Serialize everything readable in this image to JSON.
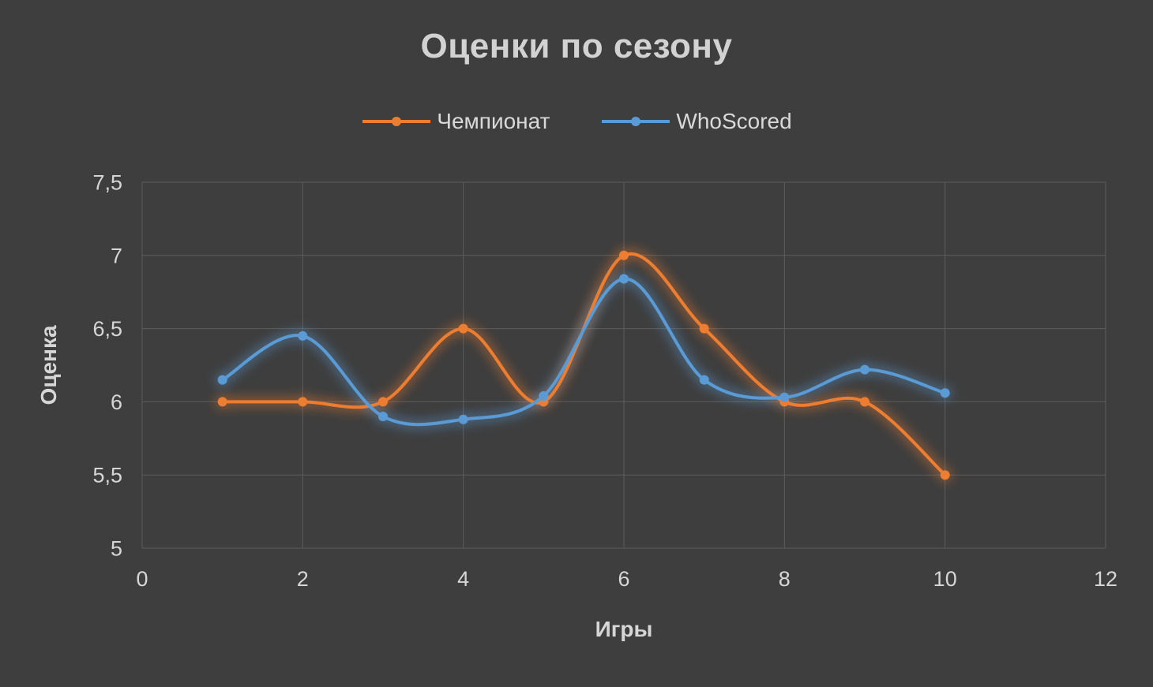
{
  "title": "Оценки по сезону",
  "colors": {
    "background": "#3e3e3e",
    "grid": "#5c5c5c",
    "tick_text": "#d6d6d6",
    "title_text": "#d2d2d2"
  },
  "chart_data": {
    "type": "line",
    "title": "Оценки по сезону",
    "xlabel": "Игры",
    "ylabel": "Оценка",
    "x": [
      1,
      2,
      3,
      4,
      5,
      6,
      7,
      8,
      9,
      10
    ],
    "series": [
      {
        "name": "Чемпионат",
        "color": "#ED7D31",
        "values": [
          6.0,
          6.0,
          6.0,
          6.5,
          6.0,
          7.0,
          6.5,
          6.0,
          6.0,
          5.5
        ]
      },
      {
        "name": "WhoScored",
        "color": "#5B9BD5",
        "values": [
          6.15,
          6.45,
          5.9,
          5.88,
          6.04,
          6.84,
          6.15,
          6.03,
          6.22,
          6.06
        ]
      }
    ],
    "xlim": [
      0,
      12
    ],
    "ylim": [
      5,
      7.5
    ],
    "x_ticks": [
      0,
      2,
      4,
      6,
      8,
      10,
      12
    ],
    "x_tick_labels": [
      "0",
      "2",
      "4",
      "6",
      "8",
      "10",
      "12"
    ],
    "y_ticks": [
      5,
      5.5,
      6,
      6.5,
      7,
      7.5
    ],
    "y_tick_labels": [
      "5",
      "5,5",
      "6",
      "6,5",
      "7",
      "7,5"
    ],
    "grid": true,
    "smooth": true,
    "legend_position": "top"
  }
}
